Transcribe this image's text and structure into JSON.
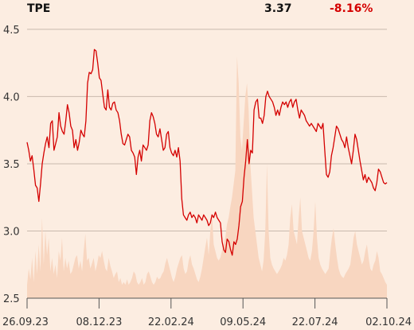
{
  "header": {
    "ticker": "TPE",
    "price": "3.37",
    "change": "-8.16%"
  },
  "colors": {
    "background": "#fcede1",
    "line": "#d40000",
    "volume": "#f8d6c0",
    "grid": "#c9b9ad",
    "axis": "#555555",
    "change_negative": "#d40000"
  },
  "chart_data": {
    "type": "line",
    "title": "",
    "xlabel": "",
    "ylabel": "",
    "ylim": [
      2.5,
      4.6
    ],
    "yticks": [
      {
        "value": 2.5,
        "label": "2.5"
      },
      {
        "value": 3.0,
        "label": "3.0"
      },
      {
        "value": 3.5,
        "label": "3.5"
      },
      {
        "value": 4.0,
        "label": "4.0"
      },
      {
        "value": 4.5,
        "label": "4.5"
      }
    ],
    "xticks": [
      "26.09.23",
      "08.12.23",
      "22.02.24",
      "09.05.24",
      "22.07.24",
      "02.10.24"
    ],
    "grid": true,
    "series": [
      {
        "values": [
          3.66,
          3.6,
          3.52,
          3.56,
          3.46,
          3.34,
          3.32,
          3.22,
          3.35,
          3.5,
          3.58,
          3.65,
          3.7,
          3.62,
          3.8,
          3.82,
          3.6,
          3.65,
          3.7,
          3.88,
          3.78,
          3.74,
          3.72,
          3.82,
          3.94,
          3.88,
          3.78,
          3.75,
          3.62,
          3.68,
          3.6,
          3.66,
          3.75,
          3.72,
          3.7,
          3.82,
          4.1,
          4.18,
          4.17,
          4.2,
          4.35,
          4.34,
          4.25,
          4.14,
          4.12,
          4.02,
          3.92,
          3.9,
          4.05,
          3.92,
          3.9,
          3.95,
          3.96,
          3.9,
          3.88,
          3.82,
          3.72,
          3.65,
          3.64,
          3.68,
          3.72,
          3.7,
          3.6,
          3.58,
          3.55,
          3.42,
          3.55,
          3.6,
          3.52,
          3.64,
          3.62,
          3.6,
          3.64,
          3.82,
          3.88,
          3.85,
          3.8,
          3.72,
          3.7,
          3.76,
          3.68,
          3.6,
          3.62,
          3.72,
          3.74,
          3.62,
          3.58,
          3.56,
          3.6,
          3.55,
          3.62,
          3.52,
          3.24,
          3.12,
          3.1,
          3.08,
          3.12,
          3.14,
          3.1,
          3.12,
          3.1,
          3.06,
          3.12,
          3.1,
          3.08,
          3.12,
          3.1,
          3.08,
          3.04,
          3.06,
          3.12,
          3.1,
          3.14,
          3.1,
          3.08,
          3.06,
          2.92,
          2.86,
          2.84,
          2.94,
          2.92,
          2.86,
          2.82,
          2.92,
          2.9,
          2.94,
          3.04,
          3.18,
          3.22,
          3.4,
          3.52,
          3.68,
          3.5,
          3.6,
          3.58,
          3.9,
          3.96,
          3.98,
          3.84,
          3.84,
          3.8,
          3.86,
          4.0,
          4.04,
          4.0,
          3.98,
          3.96,
          3.92,
          3.86,
          3.9,
          3.86,
          3.92,
          3.96,
          3.94,
          3.96,
          3.92,
          3.96,
          3.98,
          3.92,
          3.96,
          3.98,
          3.9,
          3.84,
          3.9,
          3.88,
          3.86,
          3.82,
          3.8,
          3.78,
          3.8,
          3.78,
          3.76,
          3.74,
          3.8,
          3.78,
          3.76,
          3.8,
          3.6,
          3.42,
          3.4,
          3.44,
          3.56,
          3.62,
          3.7,
          3.78,
          3.76,
          3.72,
          3.68,
          3.66,
          3.62,
          3.7,
          3.62,
          3.56,
          3.5,
          3.6,
          3.72,
          3.68,
          3.6,
          3.52,
          3.45,
          3.38,
          3.42,
          3.36,
          3.4,
          3.38,
          3.36,
          3.32,
          3.3,
          3.36,
          3.46,
          3.44,
          3.4,
          3.36,
          3.35,
          3.36
        ]
      },
      {
        "values": [
          0.1,
          0.22,
          0.14,
          0.3,
          0.12,
          0.35,
          0.18,
          0.4,
          0.2,
          0.6,
          0.25,
          0.5,
          0.32,
          0.45,
          0.2,
          0.3,
          0.18,
          0.25,
          0.15,
          0.35,
          0.28,
          0.45,
          0.2,
          0.3,
          0.22,
          0.28,
          0.18,
          0.2,
          0.25,
          0.3,
          0.32,
          0.22,
          0.28,
          0.2,
          0.35,
          0.48,
          0.28,
          0.3,
          0.22,
          0.26,
          0.3,
          0.2,
          0.25,
          0.32,
          0.3,
          0.35,
          0.28,
          0.22,
          0.2,
          0.3,
          0.24,
          0.2,
          0.15,
          0.18,
          0.2,
          0.12,
          0.15,
          0.1,
          0.12,
          0.1,
          0.14,
          0.1,
          0.12,
          0.15,
          0.2,
          0.18,
          0.12,
          0.1,
          0.12,
          0.15,
          0.1,
          0.12,
          0.18,
          0.2,
          0.16,
          0.12,
          0.1,
          0.12,
          0.16,
          0.14,
          0.15,
          0.18,
          0.2,
          0.26,
          0.3,
          0.25,
          0.2,
          0.15,
          0.12,
          0.16,
          0.22,
          0.26,
          0.3,
          0.32,
          0.22,
          0.18,
          0.2,
          0.28,
          0.32,
          0.25,
          0.22,
          0.18,
          0.14,
          0.12,
          0.16,
          0.22,
          0.3,
          0.38,
          0.45,
          0.32,
          0.5,
          0.62,
          0.4,
          0.35,
          0.3,
          0.28,
          0.3,
          0.35,
          0.4,
          0.45,
          0.55,
          0.6,
          0.68,
          0.75,
          0.85,
          0.95,
          1.8,
          1.6,
          1.2,
          1.1,
          1.3,
          1.5,
          1.6,
          1.4,
          1.0,
          0.8,
          0.6,
          0.5,
          0.4,
          0.3,
          0.25,
          0.2,
          0.28,
          0.5,
          1.0,
          0.5,
          0.3,
          0.25,
          0.22,
          0.2,
          0.18,
          0.2,
          0.22,
          0.25,
          0.3,
          0.28,
          0.32,
          0.4,
          0.6,
          0.7,
          0.5,
          0.45,
          0.4,
          0.6,
          0.75,
          0.5,
          0.45,
          0.4,
          0.35,
          0.3,
          0.28,
          0.35,
          0.5,
          0.72,
          0.45,
          0.3,
          0.25,
          0.22,
          0.2,
          0.18,
          0.2,
          0.22,
          0.35,
          0.45,
          0.52,
          0.4,
          0.3,
          0.22,
          0.18,
          0.16,
          0.15,
          0.18,
          0.2,
          0.22,
          0.25,
          0.35,
          0.45,
          0.5,
          0.4,
          0.35,
          0.3,
          0.25,
          0.28,
          0.35,
          0.4,
          0.3,
          0.22,
          0.2,
          0.25,
          0.28,
          0.35,
          0.3,
          0.2,
          0.18,
          0.15,
          0.12,
          0.1
        ]
      }
    ]
  }
}
